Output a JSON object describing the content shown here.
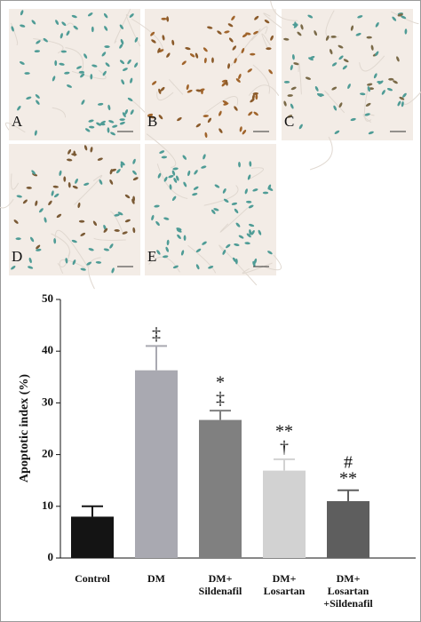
{
  "panels": [
    "A",
    "B",
    "C",
    "D",
    "E"
  ],
  "chart_data": {
    "type": "bar",
    "y_label": "Apoptotic index (%)",
    "categories": [
      [
        "Control"
      ],
      [
        "DM"
      ],
      [
        "DM+",
        "Sildenafil"
      ],
      [
        "DM+",
        "Losartan"
      ],
      [
        "DM+",
        "Losartan",
        "+Sildenafil"
      ]
    ],
    "values": [
      8.0,
      36.3,
      26.7,
      16.9,
      11.0
    ],
    "errors": [
      2.0,
      4.7,
      1.8,
      2.2,
      2.1
    ],
    "colors": [
      "#141414",
      "#a9a9b1",
      "#808080",
      "#d2d2d2",
      "#5e5e5e"
    ],
    "annotations": [
      [],
      [
        "‡"
      ],
      [
        "*",
        "‡"
      ],
      [
        "**",
        "†"
      ],
      [
        "#",
        "**"
      ]
    ],
    "ylim": [
      0,
      50
    ],
    "yticks": [
      0,
      10,
      20,
      30,
      40,
      50
    ]
  }
}
